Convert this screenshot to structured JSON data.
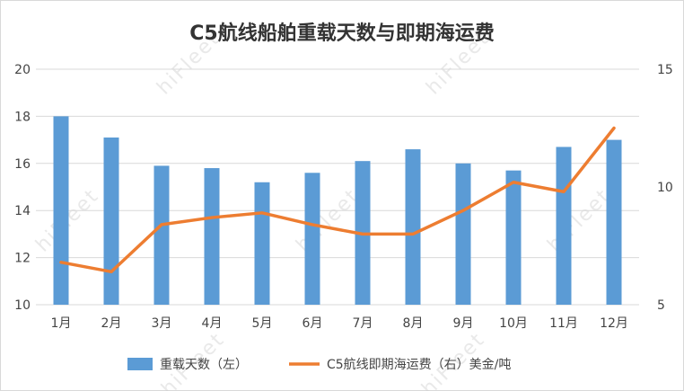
{
  "chart_data": {
    "type": "bar",
    "title": "C5航线船舶重载天数与即期海运费",
    "categories": [
      "1月",
      "2月",
      "3月",
      "4月",
      "5月",
      "6月",
      "7月",
      "8月",
      "9月",
      "10月",
      "11月",
      "12月"
    ],
    "series": [
      {
        "name": "重载天数（左）",
        "type": "bar",
        "axis": "left",
        "color": "#5b9bd5",
        "values": [
          18.0,
          17.1,
          15.9,
          15.8,
          15.2,
          15.6,
          16.1,
          16.6,
          16.0,
          15.7,
          16.7,
          17.0
        ]
      },
      {
        "name": "C5航线即期海运费（右）美金/吨",
        "type": "line",
        "axis": "right",
        "color": "#ed7d31",
        "values": [
          6.8,
          6.4,
          8.4,
          8.7,
          8.9,
          8.4,
          8.0,
          8.0,
          9.0,
          10.2,
          9.8,
          12.5
        ]
      }
    ],
    "y_left": {
      "min": 10,
      "max": 20,
      "ticks": [
        10,
        12,
        14,
        16,
        18,
        20
      ]
    },
    "y_right": {
      "min": 5,
      "max": 15,
      "ticks": [
        5,
        10,
        15
      ]
    },
    "grid": true,
    "legend": "bottom"
  },
  "watermark": {
    "text": "hiFleet"
  }
}
